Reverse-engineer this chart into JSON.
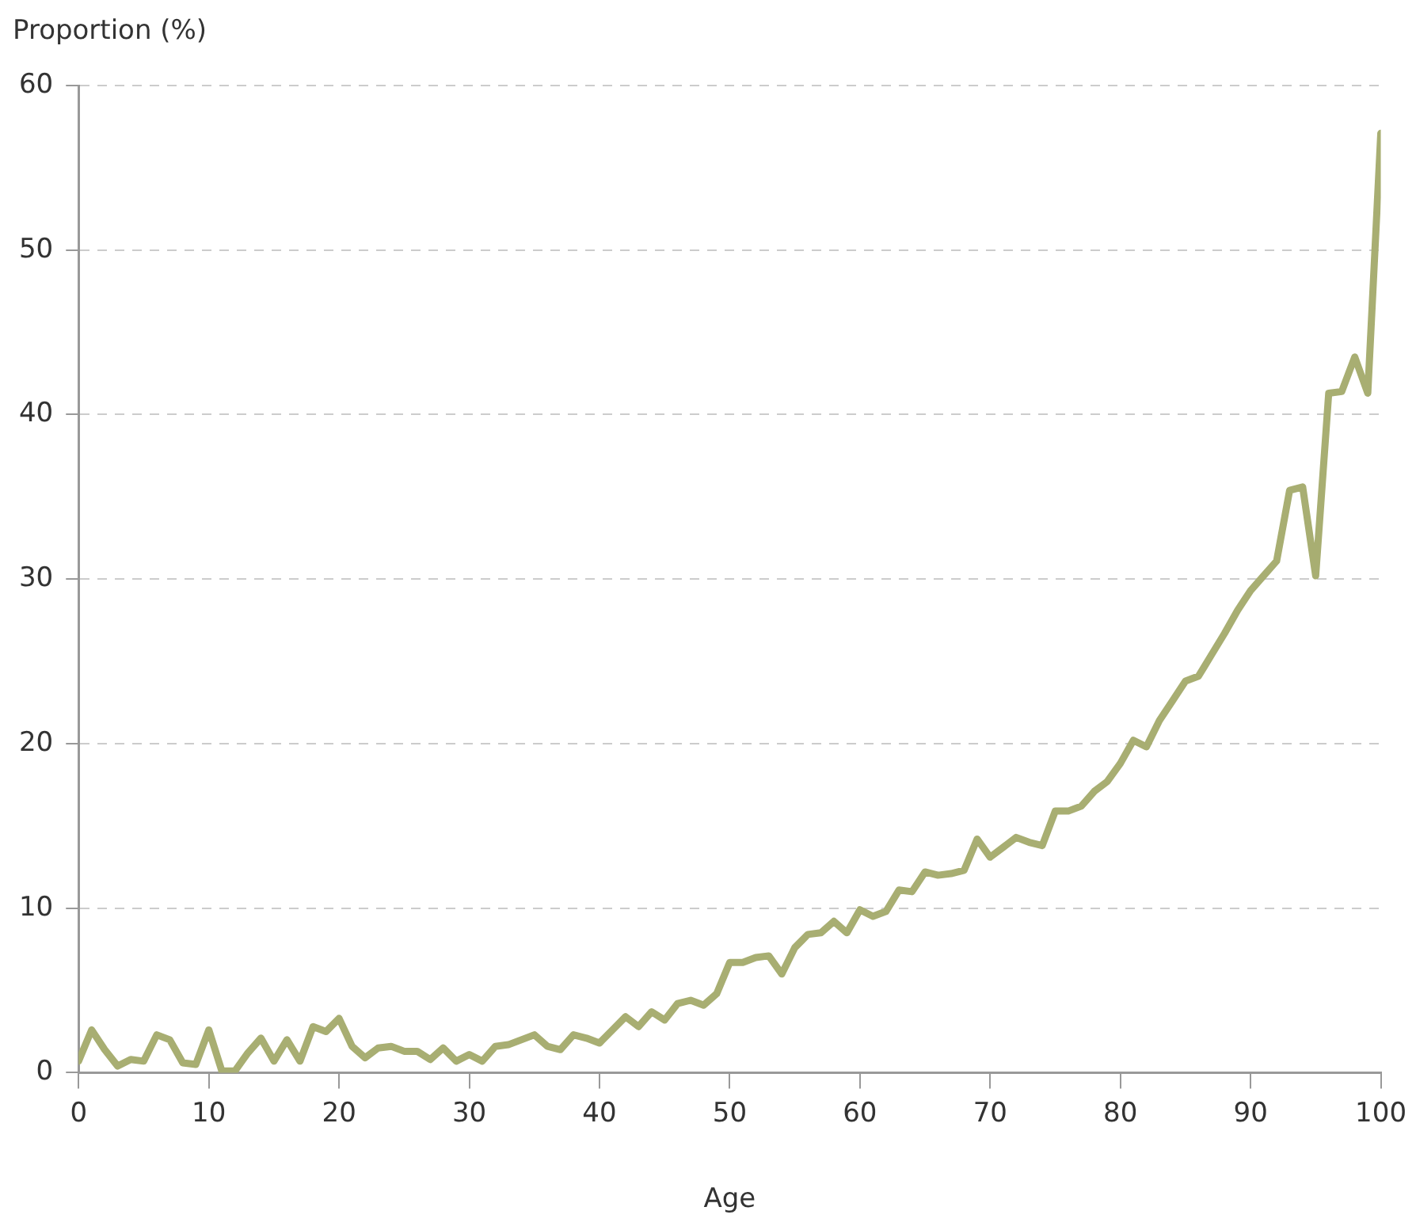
{
  "chart_data": {
    "type": "line",
    "ylabel": "Proportion (%)",
    "xlabel": "Age",
    "x": [
      0,
      1,
      2,
      3,
      4,
      5,
      6,
      7,
      8,
      9,
      10,
      11,
      12,
      13,
      14,
      15,
      16,
      17,
      18,
      19,
      20,
      21,
      22,
      23,
      24,
      25,
      26,
      27,
      28,
      29,
      30,
      31,
      32,
      33,
      34,
      35,
      36,
      37,
      38,
      39,
      40,
      41,
      42,
      43,
      44,
      45,
      46,
      47,
      48,
      49,
      50,
      51,
      52,
      53,
      54,
      55,
      56,
      57,
      58,
      59,
      60,
      61,
      62,
      63,
      64,
      65,
      66,
      67,
      68,
      69,
      70,
      71,
      72,
      73,
      74,
      75,
      76,
      77,
      78,
      79,
      80,
      81,
      82,
      83,
      84,
      85,
      86,
      87,
      88,
      89,
      90,
      91,
      92,
      93,
      94,
      95,
      96,
      97,
      98,
      99,
      100
    ],
    "series": [
      {
        "color": "#a8ae72",
        "values": [
          0.7,
          2.6,
          1.4,
          0.4,
          0.8,
          0.7,
          2.3,
          2.0,
          0.6,
          0.5,
          2.6,
          0.1,
          0.1,
          1.2,
          2.1,
          0.7,
          2.0,
          0.7,
          2.8,
          2.5,
          3.3,
          1.6,
          0.9,
          1.5,
          1.6,
          1.3,
          1.3,
          0.8,
          1.5,
          0.7,
          1.1,
          0.7,
          1.6,
          1.7,
          2.0,
          2.3,
          1.6,
          1.4,
          2.3,
          2.1,
          1.8,
          2.6,
          3.4,
          2.8,
          3.7,
          3.2,
          4.2,
          4.4,
          4.1,
          4.8,
          6.7,
          6.7,
          7.0,
          7.1,
          6.0,
          7.6,
          8.4,
          8.5,
          9.2,
          8.5,
          9.9,
          9.5,
          9.8,
          11.1,
          11.0,
          12.2,
          12.0,
          12.1,
          12.3,
          14.2,
          13.1,
          13.7,
          14.3,
          14.0,
          13.8,
          15.9,
          15.9,
          16.2,
          17.1,
          17.7,
          18.8,
          20.2,
          19.8,
          21.4,
          22.6,
          23.8,
          24.1,
          25.4,
          26.7,
          28.1,
          29.3,
          30.2,
          31.1,
          35.4,
          35.6,
          30.2,
          41.3,
          41.4,
          43.5,
          41.3,
          57.1
        ]
      }
    ],
    "xlim": [
      0,
      100
    ],
    "xticks": [
      0,
      10,
      20,
      30,
      40,
      50,
      60,
      70,
      80,
      90,
      100
    ],
    "ylim": [
      0,
      60
    ],
    "yticks": [
      0,
      10,
      20,
      30,
      40,
      50,
      60
    ],
    "grid": "y",
    "legend": false,
    "marker": "none",
    "line_style": "solid"
  }
}
